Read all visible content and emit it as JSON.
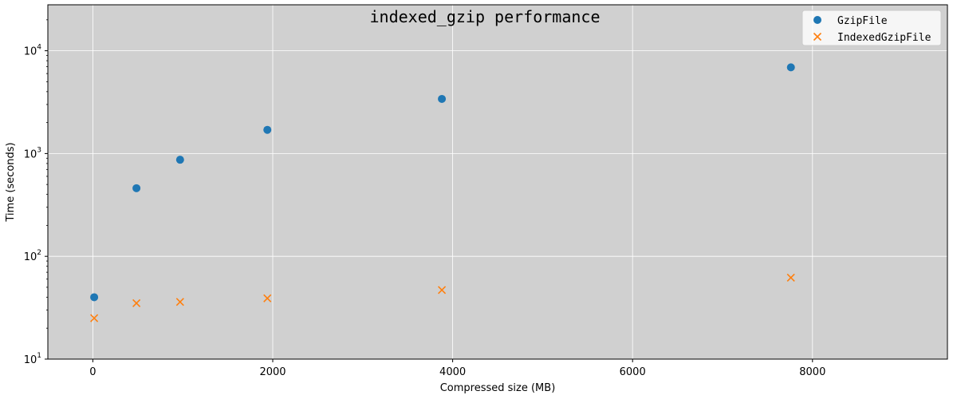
{
  "chart_data": {
    "type": "scatter",
    "title": "indexed_gzip performance",
    "xlabel": "Compressed size (MB)",
    "ylabel": "Time (seconds)",
    "xlim": [
      -500,
      9500
    ],
    "ylim": [
      10,
      28000
    ],
    "yscale": "log",
    "x_ticks": [
      0,
      2000,
      4000,
      6000,
      8000
    ],
    "x_tick_labels": [
      "0",
      "2000",
      "4000",
      "6000",
      "8000"
    ],
    "y_ticks": [
      10,
      100,
      1000,
      10000
    ],
    "y_tick_labels": [
      {
        "base": "10",
        "exp": "1"
      },
      {
        "base": "10",
        "exp": "2"
      },
      {
        "base": "10",
        "exp": "3"
      },
      {
        "base": "10",
        "exp": "4"
      }
    ],
    "grid": true,
    "background": "#d0d0d0",
    "legend_position": "top-right",
    "series": [
      {
        "name": "GzipFile",
        "marker": "circle",
        "color": "#1f77b4",
        "points": [
          [
            15,
            40
          ],
          [
            485,
            460
          ],
          [
            970,
            870
          ],
          [
            1940,
            1700
          ],
          [
            3880,
            3400
          ],
          [
            7760,
            6900
          ]
        ]
      },
      {
        "name": "IndexedGzipFile",
        "marker": "x",
        "color": "#ff7f0e",
        "points": [
          [
            15,
            25
          ],
          [
            485,
            35
          ],
          [
            970,
            36
          ],
          [
            1940,
            39
          ],
          [
            3880,
            47
          ],
          [
            7760,
            62
          ]
        ]
      }
    ]
  }
}
